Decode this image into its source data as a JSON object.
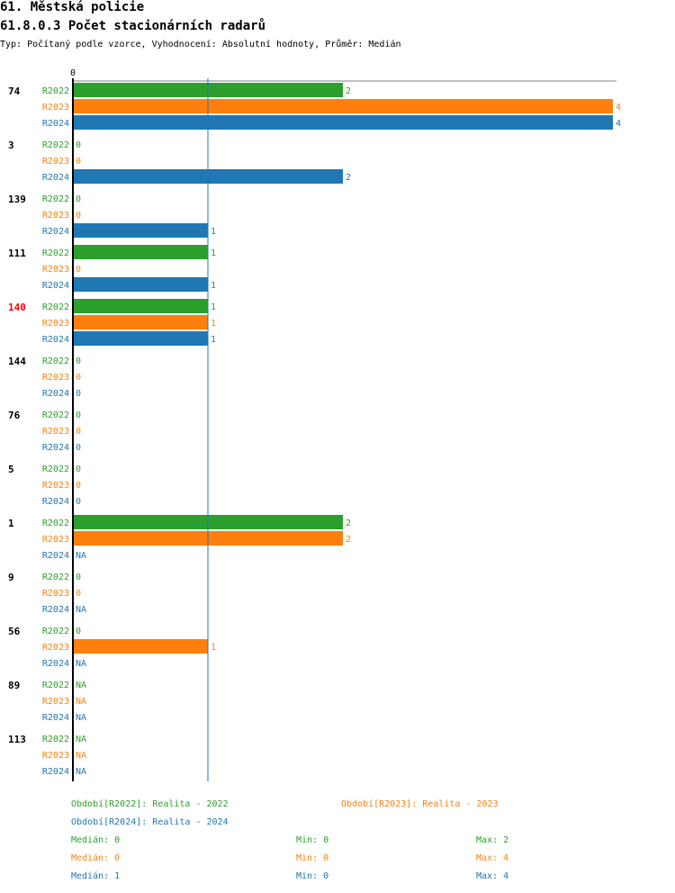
{
  "header": {
    "title": "61. Městská policie",
    "subtitle": "61.8.0.3 Počet stacionárních radarů",
    "meta": "Typ: Počítaný podle vzorce, Vyhodnocení: Absolutní hodnoty, Průměr: Medián"
  },
  "colors": {
    "R2022": "#2ca02c",
    "R2023": "#ff7f0e",
    "R2024": "#1f77b4",
    "highlight": "#ff0000",
    "axis": "#000000",
    "median": "#1f77b4"
  },
  "chart_data": {
    "type": "bar",
    "orientation": "horizontal",
    "x_tick_label": "0",
    "xlim": [
      0,
      4
    ],
    "median_line_value": 1,
    "series": [
      "R2022",
      "R2023",
      "R2024"
    ],
    "groups": [
      {
        "label": "74",
        "highlight": false,
        "values": [
          2,
          4,
          4
        ]
      },
      {
        "label": "3",
        "highlight": false,
        "values": [
          0,
          0,
          2
        ]
      },
      {
        "label": "139",
        "highlight": false,
        "values": [
          0,
          0,
          1
        ]
      },
      {
        "label": "111",
        "highlight": false,
        "values": [
          1,
          0,
          1
        ]
      },
      {
        "label": "140",
        "highlight": true,
        "values": [
          1,
          1,
          1
        ]
      },
      {
        "label": "144",
        "highlight": false,
        "values": [
          0,
          0,
          0
        ]
      },
      {
        "label": "76",
        "highlight": false,
        "values": [
          0,
          0,
          0
        ]
      },
      {
        "label": "5",
        "highlight": false,
        "values": [
          0,
          0,
          0
        ]
      },
      {
        "label": "1",
        "highlight": false,
        "values": [
          2,
          2,
          "NA"
        ]
      },
      {
        "label": "9",
        "highlight": false,
        "values": [
          0,
          0,
          "NA"
        ]
      },
      {
        "label": "56",
        "highlight": false,
        "values": [
          0,
          1,
          "NA"
        ]
      },
      {
        "label": "89",
        "highlight": false,
        "values": [
          "NA",
          "NA",
          "NA"
        ]
      },
      {
        "label": "113",
        "highlight": false,
        "values": [
          "NA",
          "NA",
          "NA"
        ]
      }
    ]
  },
  "legend": {
    "periods": [
      {
        "series": "R2022",
        "text": "Období[R2022]: Realita - 2022"
      },
      {
        "series": "R2023",
        "text": "Období[R2023]: Realita - 2023"
      },
      {
        "series": "R2024",
        "text": "Období[R2024]: Realita - 2024"
      }
    ],
    "stats": [
      {
        "series": "R2022",
        "median": "Medián: 0",
        "min": "Min: 0",
        "max": "Max: 2"
      },
      {
        "series": "R2023",
        "median": "Medián: 0",
        "min": "Min: 0",
        "max": "Max: 4"
      },
      {
        "series": "R2024",
        "median": "Medián: 1",
        "min": "Min: 0",
        "max": "Max: 4"
      }
    ]
  }
}
